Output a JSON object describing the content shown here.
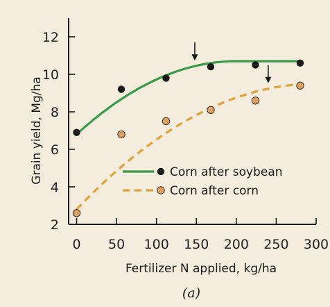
{
  "chart_data": {
    "type": "scatter",
    "xlabel": "Fertilizer N applied, kg/ha",
    "ylabel": "Grain yield, Mg/ha",
    "caption": "(a)",
    "xlim": [
      -10,
      300
    ],
    "ylim": [
      2,
      13
    ],
    "x_ticks": [
      0,
      50,
      100,
      150,
      200,
      250,
      300
    ],
    "y_ticks": [
      2,
      4,
      6,
      8,
      10,
      12
    ],
    "grid": false,
    "legend_position": "bottom-right",
    "series": [
      {
        "name": "Corn after soybean",
        "line_style": "solid",
        "line_color": "#3a9a4a",
        "marker_color": "#1a1a1a",
        "points": [
          {
            "x": 0,
            "y": 6.9
          },
          {
            "x": 56,
            "y": 9.2
          },
          {
            "x": 112,
            "y": 9.8
          },
          {
            "x": 168,
            "y": 10.4
          },
          {
            "x": 224,
            "y": 10.5
          },
          {
            "x": 280,
            "y": 10.6
          }
        ],
        "fit": {
          "x_start": 0,
          "x_plateau": 200,
          "y_start": 6.8,
          "y_plateau": 10.7,
          "x_end": 280
        },
        "arrow_x": 148
      },
      {
        "name": "Corn after corn",
        "line_style": "dashed",
        "line_color": "#e0a23a",
        "marker_color": "#e0a060",
        "points": [
          {
            "x": 0,
            "y": 2.6
          },
          {
            "x": 56,
            "y": 6.8
          },
          {
            "x": 112,
            "y": 7.5
          },
          {
            "x": 168,
            "y": 8.1
          },
          {
            "x": 224,
            "y": 8.6
          },
          {
            "x": 280,
            "y": 9.4
          }
        ],
        "fit": {
          "x_start": 0,
          "x_plateau": 300,
          "y_start": 2.8,
          "y_plateau": 9.5,
          "x_end": 280
        },
        "arrow_x": 240
      }
    ]
  },
  "colors": {
    "background": "#f4ecdc",
    "axis": "#1a1a1a",
    "arrow": "#1a1a1a"
  }
}
